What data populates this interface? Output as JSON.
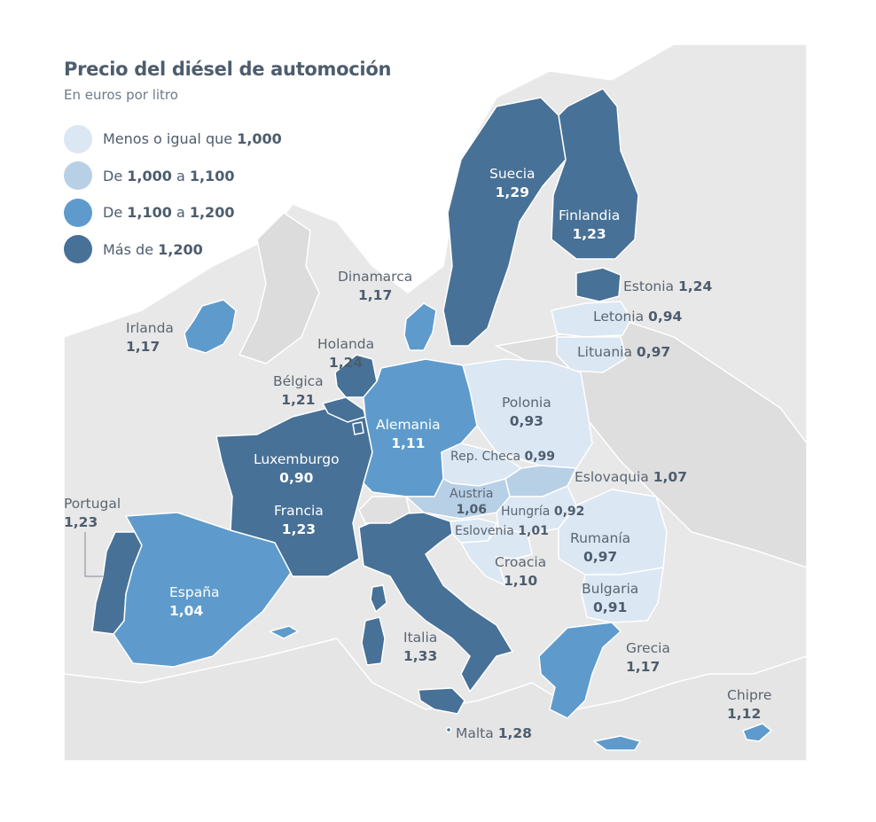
{
  "title": "Precio del diésel de automoción",
  "subtitle": "En euros por litro",
  "colors": {
    "background_land": "#e5e5e5",
    "border": "#ffffff",
    "cat1": "#dbe7f3",
    "cat2": "#b8d0e6",
    "cat3": "#5e9bcc",
    "cat4": "#477197"
  },
  "legend": [
    {
      "prefix": "Menos o igual que ",
      "a": "1,000",
      "mid": "",
      "b": "",
      "color": "#dbe7f3"
    },
    {
      "prefix": "De ",
      "a": "1,000",
      "mid": " a ",
      "b": "1,100",
      "color": "#b8d0e6"
    },
    {
      "prefix": "De ",
      "a": "1,100",
      "mid": " a ",
      "b": "1,200",
      "color": "#5e9bcc"
    },
    {
      "prefix": "Más de ",
      "a": "1,200",
      "mid": "",
      "b": "",
      "color": "#477197"
    }
  ],
  "countries": {
    "suecia": {
      "name": "Suecia",
      "value": "1,29"
    },
    "finlandia": {
      "name": "Finlandia",
      "value": "1,23"
    },
    "estonia": {
      "name": "Estonia",
      "value": "1,24"
    },
    "letonia": {
      "name": "Letonia",
      "value": "0,94"
    },
    "lituania": {
      "name": "Lituania",
      "value": "0,97"
    },
    "dinamarca": {
      "name": "Dinamarca",
      "value": "1,17"
    },
    "irlanda": {
      "name": "Irlanda",
      "value": "1,17"
    },
    "holanda": {
      "name": "Holanda",
      "value": "1,24"
    },
    "belgica": {
      "name": "Bélgica",
      "value": "1,21"
    },
    "alemania": {
      "name": "Alemania",
      "value": "1,11"
    },
    "polonia": {
      "name": "Polonia",
      "value": "0,93"
    },
    "rep_checa": {
      "name": "Rep. Checa",
      "value": "0,99"
    },
    "eslovaquia": {
      "name": "Eslovaquia",
      "value": "1,07"
    },
    "luxemburgo": {
      "name": "Luxemburgo",
      "value": "0,90"
    },
    "austria": {
      "name": "Austria",
      "value": "1,06"
    },
    "hungria": {
      "name": "Hungría",
      "value": "0,92"
    },
    "eslovenia": {
      "name": "Eslovenia",
      "value": "1,01"
    },
    "portugal": {
      "name": "Portugal",
      "value": "1,23"
    },
    "francia": {
      "name": "Francia",
      "value": "1,23"
    },
    "rumania": {
      "name": "Rumanía",
      "value": "0,97"
    },
    "croacia": {
      "name": "Croacia",
      "value": "1,10"
    },
    "espana": {
      "name": "España",
      "value": "1,04"
    },
    "bulgaria": {
      "name": "Bulgaria",
      "value": "0,91"
    },
    "italia": {
      "name": "Italia",
      "value": "1,33"
    },
    "grecia": {
      "name": "Grecia",
      "value": "1,17"
    },
    "chipre": {
      "name": "Chipre",
      "value": "1,12"
    },
    "malta": {
      "name": "Malta",
      "value": "1,28"
    }
  }
}
